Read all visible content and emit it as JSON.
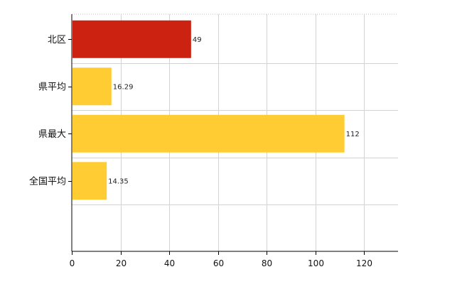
{
  "chart_data": {
    "type": "bar",
    "orientation": "horizontal",
    "title": "",
    "xlabel": "",
    "ylabel": "",
    "categories": [
      "北区",
      "県平均",
      "県最大",
      "全国平均"
    ],
    "values": [
      49,
      16.29,
      112,
      14.35
    ],
    "value_labels": [
      "49",
      "16.29",
      "112",
      "14.35"
    ],
    "bar_colors": [
      "#cc2211",
      "#ffcc33",
      "#ffcc33",
      "#ffcc33"
    ],
    "xlim": [
      0,
      134
    ],
    "x_ticks": [
      0,
      20,
      40,
      60,
      80,
      100,
      120
    ],
    "grid": true,
    "legend": "none"
  }
}
